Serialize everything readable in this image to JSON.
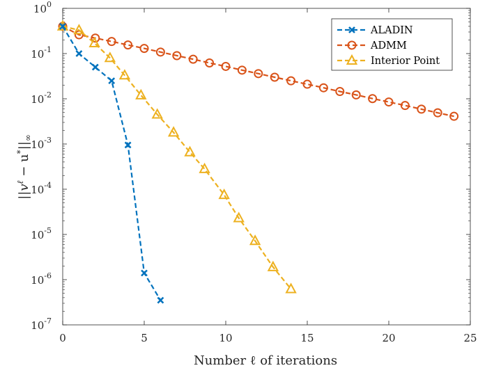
{
  "chart_data": {
    "type": "line",
    "xlabel": "Number ℓ of iterations",
    "ylabel": "||vℓ − u*||∞",
    "ylabel_parts": {
      "open": "||",
      "v": "v",
      "ell": "ℓ",
      "minus": " − u",
      "star": "*",
      "close": "||",
      "sub": "∞"
    },
    "xlim": [
      0,
      25
    ],
    "ylim": [
      1e-07,
      1
    ],
    "yscale": "log",
    "grid": false,
    "legend_position": "top-right",
    "x_ticks": [
      "0",
      "5",
      "10",
      "15",
      "20",
      "25"
    ],
    "x_tick_values": [
      0,
      5,
      10,
      15,
      20,
      25
    ],
    "y_ticks": [
      {
        "value": 1,
        "base": "10",
        "exp": "0"
      },
      {
        "value": 0.1,
        "base": "10",
        "exp": "-1"
      },
      {
        "value": 0.01,
        "base": "10",
        "exp": "-2"
      },
      {
        "value": 0.001,
        "base": "10",
        "exp": "-3"
      },
      {
        "value": 0.0001,
        "base": "10",
        "exp": "-4"
      },
      {
        "value": 1e-05,
        "base": "10",
        "exp": "-5"
      },
      {
        "value": 1e-06,
        "base": "10",
        "exp": "-6"
      },
      {
        "value": 1e-07,
        "base": "10",
        "exp": "-7"
      }
    ],
    "series": [
      {
        "name": "ALADIN",
        "color": "#0072bd",
        "marker": "x",
        "x": [
          0,
          1,
          2,
          3,
          4,
          5,
          6
        ],
        "y": [
          0.4,
          0.1,
          0.05,
          0.025,
          0.00095,
          1.4e-06,
          3.5e-07
        ]
      },
      {
        "name": "ADMM",
        "color": "#d95319",
        "marker": "circle",
        "x": [
          0,
          1,
          2,
          3,
          4,
          5,
          6,
          7,
          8,
          9,
          10,
          11,
          12,
          13,
          14,
          15,
          16,
          17,
          18,
          19,
          20,
          21,
          22,
          23,
          24
        ],
        "y": [
          0.4,
          0.26,
          0.22,
          0.185,
          0.155,
          0.13,
          0.108,
          0.09,
          0.075,
          0.062,
          0.052,
          0.043,
          0.036,
          0.03,
          0.025,
          0.021,
          0.0175,
          0.0145,
          0.0122,
          0.0101,
          0.0085,
          0.0071,
          0.0059,
          0.0049,
          0.0041
        ]
      },
      {
        "name": "Interior Point",
        "color": "#edb120",
        "marker": "triangle",
        "x": [
          0,
          1,
          1.95,
          2.9,
          3.8,
          4.8,
          5.8,
          6.8,
          7.8,
          8.7,
          9.9,
          10.8,
          11.8,
          12.9,
          14.0
        ],
        "y": [
          0.4,
          0.33,
          0.17,
          0.08,
          0.033,
          0.012,
          0.0045,
          0.0018,
          0.00066,
          0.00028,
          7.5e-05,
          2.3e-05,
          7.2e-06,
          1.9e-06,
          6.2e-07
        ]
      }
    ]
  }
}
